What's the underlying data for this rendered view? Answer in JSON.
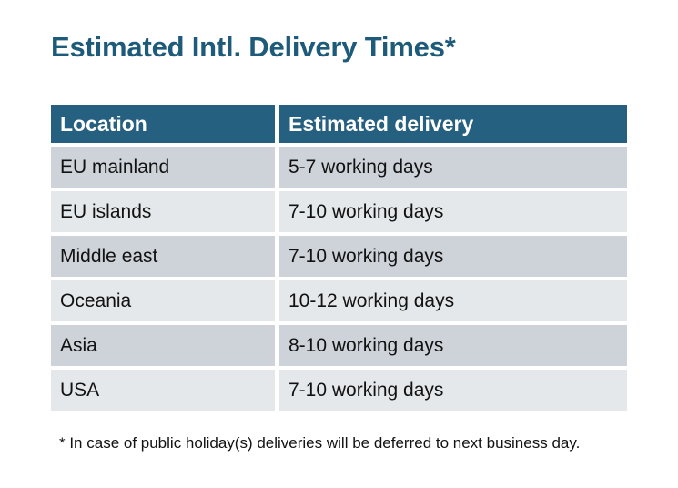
{
  "chart_data": {
    "type": "table",
    "title": "Estimated Intl. Delivery Times*",
    "columns": [
      "Location",
      "Estimated delivery"
    ],
    "rows": [
      [
        "EU mainland",
        "5-7 working days"
      ],
      [
        "EU islands",
        "7-10 working days"
      ],
      [
        "Middle east",
        "7-10 working days"
      ],
      [
        "Oceania",
        "10-12 working days"
      ],
      [
        "Asia",
        "8-10 working days"
      ],
      [
        "USA",
        "7-10 working days"
      ]
    ],
    "footnote": "* In case of public holiday(s) deliveries will be deferred to next business day."
  },
  "colors": {
    "title_text": "#1E5B7B",
    "header_bg": "#266080",
    "header_text": "#FFFFFF",
    "row_band_dark": "#CED2D9",
    "row_band_light": "#E5E8EB",
    "body_text": "#121212",
    "page_bg": "#FFFFFF"
  }
}
